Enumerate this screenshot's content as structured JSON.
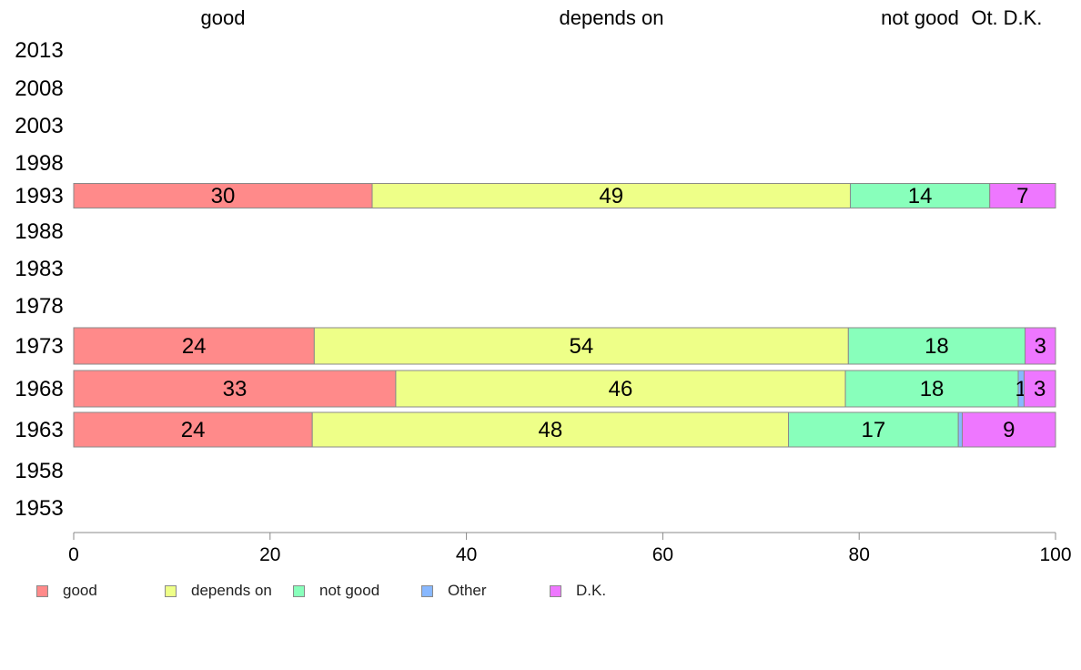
{
  "chart_data": {
    "type": "bar",
    "orientation": "horizontal",
    "stacked": true,
    "column_headers": [
      "good",
      "depends on",
      "not good",
      "Ot.",
      "D.K."
    ],
    "categories": [
      "2013",
      "2008",
      "2003",
      "1998",
      "1993",
      "1988",
      "1983",
      "1978",
      "1973",
      "1968",
      "1963",
      "1958",
      "1953"
    ],
    "series": [
      {
        "name": "good",
        "color": "#ff8a8a",
        "values": [
          null,
          null,
          null,
          null,
          30.4,
          null,
          null,
          null,
          24.5,
          32.8,
          24.3,
          null,
          null
        ]
      },
      {
        "name": "depends on",
        "color": "#eeff88",
        "values": [
          null,
          null,
          null,
          null,
          48.7,
          null,
          null,
          null,
          54.4,
          45.8,
          48.5,
          null,
          null
        ]
      },
      {
        "name": "not good",
        "color": "#88ffbb",
        "values": [
          null,
          null,
          null,
          null,
          14.2,
          null,
          null,
          null,
          18.0,
          17.6,
          17.3,
          null,
          null
        ]
      },
      {
        "name": "Other",
        "color": "#88b8ff",
        "values": [
          null,
          null,
          null,
          null,
          0,
          null,
          null,
          null,
          0,
          0.6,
          0.4,
          null,
          null
        ]
      },
      {
        "name": "D.K.",
        "color": "#ee77ff",
        "values": [
          null,
          null,
          null,
          null,
          6.7,
          null,
          null,
          null,
          3.1,
          3.2,
          9.5,
          null,
          null
        ]
      }
    ],
    "data_labels": {
      "1993": [
        "30",
        "49",
        "14",
        "",
        "7"
      ],
      "1973": [
        "24",
        "54",
        "18",
        "",
        "3"
      ],
      "1968": [
        "33",
        "46",
        "18",
        "1",
        "3"
      ],
      "1963": [
        "24",
        "48",
        "17",
        "",
        "9"
      ]
    },
    "xlim": [
      0,
      100
    ],
    "xticks": [
      "0",
      "20",
      "40",
      "60",
      "80",
      "100"
    ],
    "legend_position": "bottom-left",
    "grid": false
  }
}
